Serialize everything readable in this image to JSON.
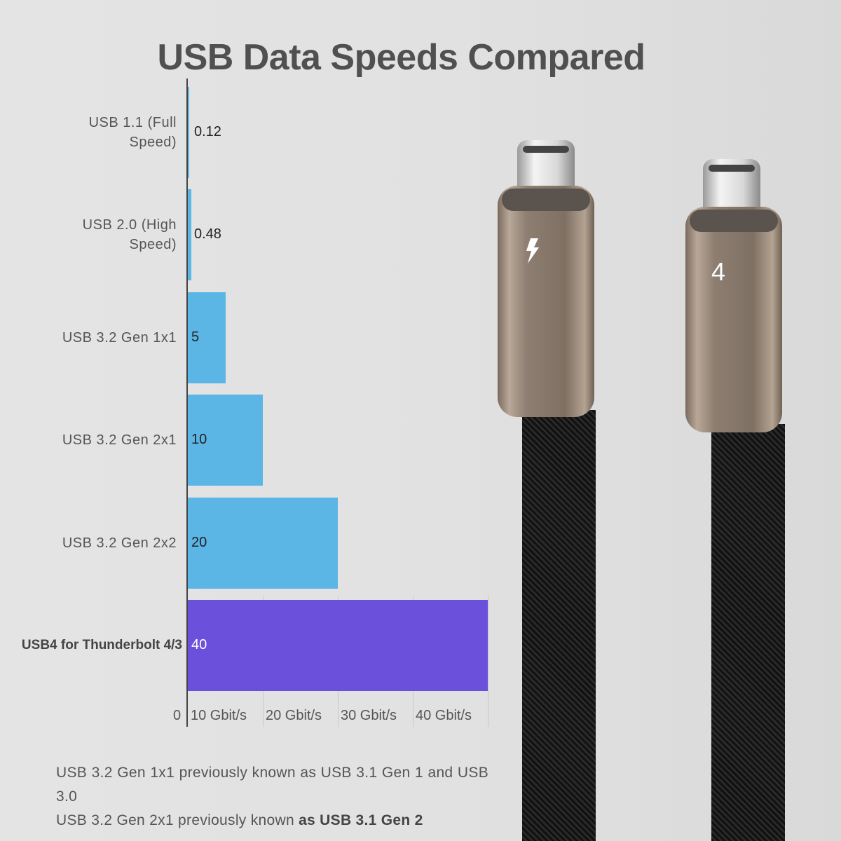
{
  "chart_data": {
    "type": "bar",
    "orientation": "horizontal",
    "title": "USB Data Speeds Compared",
    "categories": [
      "USB 1.1 (Full Speed)",
      "USB 2.0 (High Speed)",
      "USB 3.2 Gen 1x1",
      "USB 3.2 Gen 2x1",
      "USB 3.2 Gen 2x2",
      "USB4 for Thunderbolt 4/3"
    ],
    "values": [
      0.12,
      0.48,
      5,
      10,
      20,
      40
    ],
    "value_labels": [
      "0.12",
      "0.48",
      "5",
      "10",
      "20",
      "40"
    ],
    "colors": [
      "#5bb5e5",
      "#5bb5e5",
      "#5bb5e5",
      "#5bb5e5",
      "#5bb5e5",
      "#6a50da"
    ],
    "xlim": [
      0,
      40
    ],
    "xticks": [
      0,
      10,
      20,
      30,
      40
    ],
    "xtick_labels": [
      "0",
      "10 Gbit/s",
      "20 Gbit/s",
      "30 Gbit/s",
      "40 Gbit/s"
    ],
    "grid": true,
    "legend": "none"
  },
  "notes": {
    "line1": "USB 3.2 Gen 1x1 previously known as USB 3.1 Gen 1 and USB 3.0",
    "line2_a": "USB 3.2 Gen 2x1 previously known ",
    "line2_b": "as USB 3.1 Gen 2"
  },
  "image": {
    "left_connector_mark": "thunderbolt-icon",
    "right_connector_mark": "4"
  }
}
